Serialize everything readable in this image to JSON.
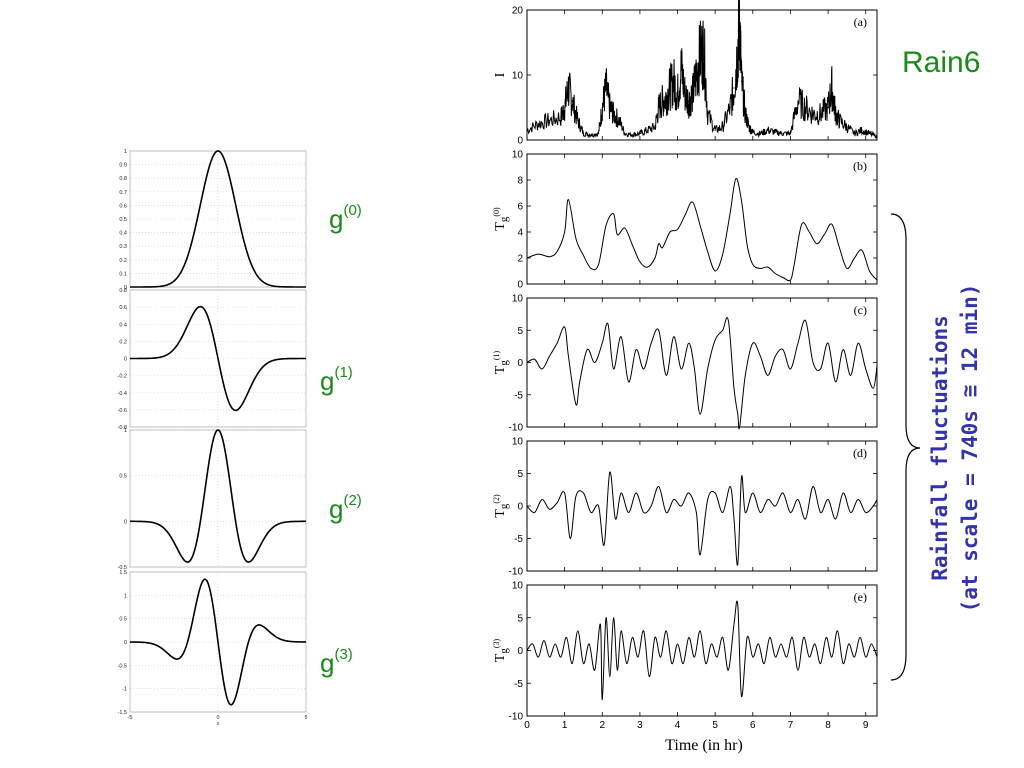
{
  "left_labels": [
    {
      "base": "g",
      "sup": "(0)"
    },
    {
      "base": "g",
      "sup": "(1)"
    },
    {
      "base": "g",
      "sup": "(2)"
    },
    {
      "base": "g",
      "sup": "(3)"
    }
  ],
  "rain_label": "Rain6",
  "fluctuation_label": {
    "line1": "Rainfall fluctuations",
    "line2": "(at scale = 740s ≅ 12 min)"
  },
  "colors": {
    "green": "#1a8a1a",
    "blue": "#3333aa",
    "line": "#000000"
  },
  "chart_data": [
    {
      "type": "line",
      "name": "g(0)",
      "function": "gaussian-derivative-0",
      "x_range": [
        -5,
        5
      ],
      "ylim": [
        0,
        1
      ],
      "y_ticks": [
        "0",
        "0.1",
        "0.2",
        "0.3",
        "0.4",
        "0.5",
        "0.6",
        "0.7",
        "0.8",
        "0.9",
        "1"
      ],
      "y_tick_values": [
        0,
        0.1,
        0.2,
        0.3,
        0.4,
        0.5,
        0.6,
        0.7,
        0.8,
        0.9,
        1
      ],
      "grid": true
    },
    {
      "type": "line",
      "name": "g(1)",
      "function": "gaussian-derivative-1",
      "x_range": [
        -5,
        5
      ],
      "ylim": [
        -0.8,
        0.8
      ],
      "y_ticks": [
        "0.8",
        "0.6",
        "0.4",
        "0.2",
        "0",
        "-0.2",
        "-0.4",
        "-0.6",
        "-0.8"
      ],
      "y_tick_values": [
        0.8,
        0.6,
        0.4,
        0.2,
        0,
        -0.2,
        -0.4,
        -0.6,
        -0.8
      ],
      "grid": true
    },
    {
      "type": "line",
      "name": "g(2)",
      "function": "gaussian-derivative-2",
      "x_range": [
        -5,
        5
      ],
      "ylim": [
        -0.5,
        1
      ],
      "y_ticks": [
        "1",
        "0.5",
        "0",
        "-0.5"
      ],
      "y_tick_values": [
        1,
        0.5,
        0,
        -0.5
      ],
      "grid": true
    },
    {
      "type": "line",
      "name": "g(3)",
      "function": "gaussian-derivative-3",
      "x_range": [
        -5,
        5
      ],
      "ylim": [
        -1.5,
        1.5
      ],
      "y_ticks": [
        "1.5",
        "1",
        "0.5",
        "0",
        "-0.5",
        "-1",
        "-1.5"
      ],
      "y_tick_values": [
        1.5,
        1,
        0.5,
        0,
        -0.5,
        -1,
        -1.5
      ],
      "x_ticks": [
        "-5",
        "0",
        "5"
      ],
      "x_tick_values": [
        -5,
        0,
        5
      ],
      "xlabel": "x",
      "grid": true
    },
    {
      "type": "line",
      "panel": "(a)",
      "ylabel": "I",
      "ylim": [
        0,
        20
      ],
      "y_ticks": [
        "0",
        "10",
        "20"
      ],
      "y_tick_values": [
        0,
        10,
        20
      ],
      "xlim": [
        0,
        9.3
      ],
      "x": [
        0,
        0.3,
        0.6,
        0.9,
        1.0,
        1.1,
        1.2,
        1.35,
        1.5,
        1.7,
        1.9,
        2.0,
        2.1,
        2.2,
        2.3,
        2.45,
        2.6,
        2.8,
        3.0,
        3.2,
        3.4,
        3.5,
        3.6,
        3.7,
        3.8,
        3.9,
        4.0,
        4.1,
        4.2,
        4.3,
        4.4,
        4.5,
        4.6,
        4.7,
        4.8,
        5.0,
        5.2,
        5.4,
        5.5,
        5.6,
        5.65,
        5.7,
        5.8,
        5.9,
        6.0,
        6.2,
        6.4,
        6.6,
        6.8,
        7.0,
        7.2,
        7.4,
        7.6,
        7.8,
        8.0,
        8.1,
        8.2,
        8.3,
        8.5,
        8.7,
        8.9,
        9.1,
        9.3
      ],
      "values": [
        1.5,
        2.5,
        3,
        3.5,
        5,
        8,
        6,
        3,
        1,
        0.8,
        1,
        5,
        8,
        5,
        4,
        3,
        1,
        0.8,
        1,
        1.5,
        2,
        5,
        6,
        6.5,
        8,
        9,
        7,
        11,
        7,
        6,
        7,
        10,
        13,
        14,
        4,
        1.5,
        2,
        5,
        8,
        14,
        19,
        9,
        4,
        2,
        1.2,
        1,
        1.5,
        1.2,
        1,
        1,
        6,
        5,
        4,
        4,
        5,
        8,
        4,
        3,
        2,
        1,
        1.5,
        1,
        0.5
      ],
      "grid": false
    },
    {
      "type": "line",
      "panel": "(b)",
      "ylabel": "T",
      "ylabel_sub": "g",
      "ylabel_sup": "(0)",
      "ylim": [
        0,
        10
      ],
      "y_ticks": [
        "0",
        "2",
        "4",
        "6",
        "8",
        "10"
      ],
      "y_tick_values": [
        0,
        2,
        4,
        6,
        8,
        10
      ],
      "xlim": [
        0,
        9.3
      ],
      "x": [
        0,
        0.3,
        0.6,
        0.8,
        1.0,
        1.1,
        1.3,
        1.5,
        1.7,
        1.9,
        2.1,
        2.3,
        2.4,
        2.6,
        2.8,
        3.0,
        3.2,
        3.4,
        3.5,
        3.6,
        3.8,
        4.0,
        4.2,
        4.4,
        4.6,
        4.8,
        5.0,
        5.2,
        5.4,
        5.55,
        5.7,
        5.85,
        6.0,
        6.2,
        6.4,
        6.6,
        6.8,
        7.0,
        7.1,
        7.3,
        7.5,
        7.7,
        7.9,
        8.1,
        8.3,
        8.5,
        8.7,
        8.9,
        9.1,
        9.3
      ],
      "values": [
        2,
        2.3,
        2.1,
        2.5,
        4,
        6.5,
        3.5,
        2.2,
        1.2,
        1.5,
        4.5,
        5.4,
        3.8,
        4.3,
        3,
        1.7,
        1.3,
        2,
        3.1,
        2.8,
        4,
        4.2,
        5.3,
        6.3,
        4.5,
        2.5,
        1,
        2.3,
        5.5,
        8.1,
        6.4,
        3,
        1.5,
        1.2,
        1.3,
        0.8,
        0.5,
        0.3,
        1.5,
        4.6,
        4,
        3.1,
        3.8,
        4.6,
        2.8,
        1.2,
        2,
        2.6,
        1,
        0.3
      ],
      "grid": false
    },
    {
      "type": "line",
      "panel": "(c)",
      "ylabel": "T",
      "ylabel_sub": "g",
      "ylabel_sup": "(1)",
      "ylim": [
        -10,
        10
      ],
      "y_ticks": [
        "-10",
        "-5",
        "0",
        "5",
        "10"
      ],
      "y_tick_values": [
        -10,
        -5,
        0,
        5,
        10
      ],
      "xlim": [
        0,
        9.3
      ],
      "x": [
        0,
        0.2,
        0.4,
        0.6,
        0.8,
        1.0,
        1.1,
        1.3,
        1.4,
        1.6,
        1.8,
        2.0,
        2.15,
        2.3,
        2.5,
        2.7,
        2.9,
        3.1,
        3.3,
        3.5,
        3.7,
        3.9,
        4.1,
        4.3,
        4.45,
        4.6,
        4.8,
        5.0,
        5.2,
        5.35,
        5.5,
        5.6,
        5.65,
        5.8,
        6.0,
        6.2,
        6.4,
        6.6,
        6.8,
        7.0,
        7.2,
        7.4,
        7.6,
        7.8,
        8.0,
        8.2,
        8.4,
        8.6,
        8.8,
        9.0,
        9.2,
        9.3
      ],
      "values": [
        0,
        0.5,
        -1,
        1,
        3,
        5.5,
        1,
        -6.5,
        -3,
        2,
        0,
        3,
        6,
        -1,
        4,
        -3,
        2,
        -1,
        3,
        5,
        -2,
        4,
        -1,
        3,
        -1,
        -8,
        -1,
        3.5,
        5,
        6.5,
        -4,
        -8,
        -10,
        -2,
        3,
        1,
        -2,
        1,
        2,
        -1,
        3,
        6.5,
        0,
        -1,
        3,
        -3,
        2,
        -2,
        3,
        -1,
        -4,
        -0.5
      ],
      "grid": false
    },
    {
      "type": "line",
      "panel": "(d)",
      "ylabel": "T",
      "ylabel_sub": "g",
      "ylabel_sup": "(2)",
      "ylim": [
        -10,
        10
      ],
      "y_ticks": [
        "-10",
        "-5",
        "0",
        "5",
        "10"
      ],
      "y_tick_values": [
        -10,
        -5,
        0,
        5,
        10
      ],
      "xlim": [
        0,
        9.3
      ],
      "x": [
        0,
        0.2,
        0.4,
        0.6,
        0.8,
        1.0,
        1.15,
        1.3,
        1.5,
        1.7,
        1.9,
        2.05,
        2.2,
        2.35,
        2.5,
        2.7,
        2.9,
        3.1,
        3.3,
        3.5,
        3.7,
        3.9,
        4.1,
        4.3,
        4.5,
        4.6,
        4.8,
        5.0,
        5.2,
        5.4,
        5.5,
        5.6,
        5.7,
        5.8,
        6.0,
        6.2,
        6.4,
        6.6,
        6.8,
        7.0,
        7.2,
        7.4,
        7.6,
        7.8,
        8.0,
        8.2,
        8.4,
        8.6,
        8.8,
        9.0,
        9.2,
        9.3
      ],
      "values": [
        0,
        -1,
        1,
        -0.5,
        0.5,
        2,
        -5,
        1.5,
        2,
        -1,
        0,
        -6,
        5.2,
        -2,
        2,
        -1,
        2,
        -1,
        0,
        3,
        -1,
        1,
        0,
        2,
        -1,
        -7.5,
        1,
        2,
        -1,
        3,
        -2,
        -9,
        4.5,
        -1,
        2,
        -1,
        1,
        0,
        2,
        -1,
        1,
        -2,
        3,
        -1,
        1,
        -2,
        2,
        -1,
        1,
        -1,
        0,
        1
      ],
      "grid": false
    },
    {
      "type": "line",
      "panel": "(e)",
      "ylabel": "T",
      "ylabel_sub": "g",
      "ylabel_sup": "(3)",
      "ylim": [
        -10,
        10
      ],
      "y_ticks": [
        "-10",
        "-5",
        "0",
        "5",
        "10"
      ],
      "y_tick_values": [
        -10,
        -5,
        0,
        5,
        10
      ],
      "xlim": [
        0,
        9.3
      ],
      "x": [
        0,
        0.15,
        0.3,
        0.45,
        0.6,
        0.75,
        0.9,
        1.05,
        1.2,
        1.35,
        1.5,
        1.65,
        1.8,
        1.95,
        2.0,
        2.1,
        2.2,
        2.3,
        2.4,
        2.5,
        2.65,
        2.8,
        2.95,
        3.1,
        3.25,
        3.4,
        3.55,
        3.7,
        3.85,
        4.0,
        4.15,
        4.3,
        4.45,
        4.6,
        4.75,
        4.9,
        5.05,
        5.2,
        5.35,
        5.5,
        5.6,
        5.7,
        5.85,
        6.0,
        6.15,
        6.3,
        6.45,
        6.6,
        6.75,
        6.9,
        7.05,
        7.2,
        7.35,
        7.5,
        7.65,
        7.8,
        7.95,
        8.1,
        8.25,
        8.4,
        8.55,
        8.7,
        8.85,
        9.0,
        9.15,
        9.3
      ],
      "values": [
        0,
        1,
        -1,
        1.5,
        -1,
        1,
        -1,
        2,
        -2,
        3,
        -2,
        1,
        -3,
        4,
        -7.5,
        5,
        -4,
        5,
        -3,
        3,
        -2,
        2,
        -1,
        3,
        -4,
        2,
        -1,
        3,
        -2,
        1,
        -2,
        2,
        -1,
        3,
        -2,
        1,
        -1,
        2,
        -3,
        4,
        7,
        -7,
        2,
        -1,
        1,
        -2,
        2,
        -1,
        1,
        -1,
        2,
        -3,
        2,
        -1,
        1,
        -2,
        2,
        -1,
        3,
        -2,
        1,
        -1,
        2,
        -1,
        1,
        -1
      ],
      "xlabel": "Time (in hr)",
      "x_ticks": [
        "0",
        "1",
        "2",
        "3",
        "4",
        "5",
        "6",
        "7",
        "8",
        "9"
      ],
      "x_tick_values": [
        0,
        1,
        2,
        3,
        4,
        5,
        6,
        7,
        8,
        9
      ],
      "grid": false
    }
  ]
}
